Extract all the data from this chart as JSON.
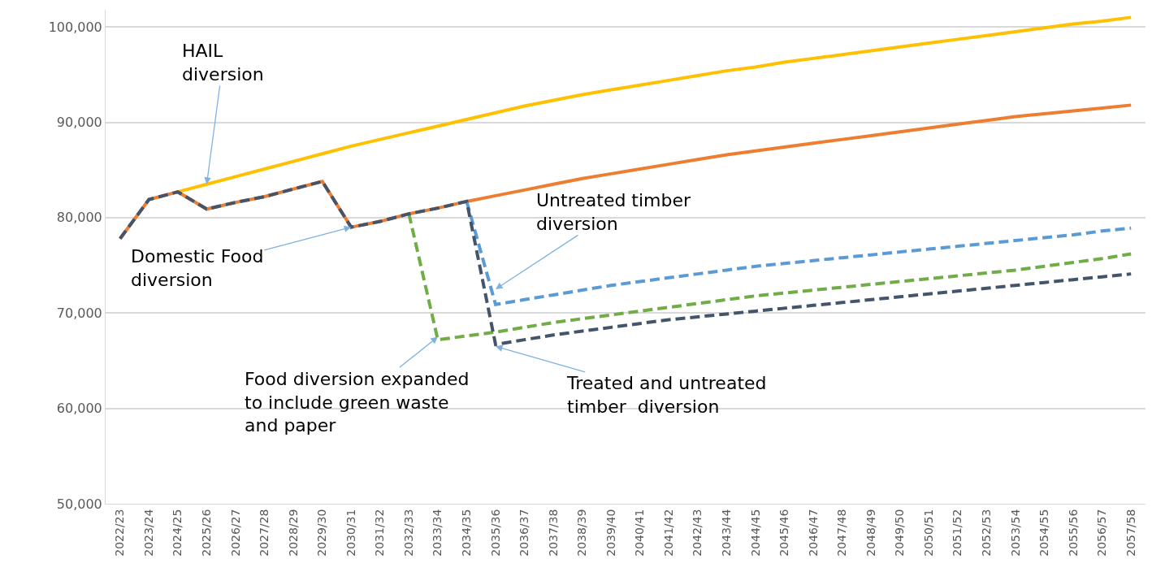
{
  "chart_data": {
    "type": "line",
    "categories": [
      "2022/23",
      "2023/24",
      "2024/25",
      "2025/26",
      "2026/27",
      "2027/28",
      "2028/29",
      "2029/30",
      "2030/31",
      "2031/32",
      "2032/33",
      "2033/34",
      "2034/35",
      "2035/36",
      "2036/37",
      "2037/38",
      "2038/39",
      "2039/40",
      "2040/41",
      "2041/42",
      "2042/43",
      "2043/44",
      "2044/45",
      "2045/46",
      "2046/47",
      "2047/48",
      "2048/49",
      "2049/50",
      "2050/51",
      "2051/52",
      "2052/53",
      "2053/54",
      "2054/55",
      "2055/56",
      "2056/57",
      "2057/58"
    ],
    "series": [
      {
        "color": "#ffc000",
        "line_style": "solid",
        "values": [
          null,
          null,
          82700,
          83500,
          84300,
          85100,
          85900,
          86700,
          87500,
          88200,
          88900,
          89600,
          90300,
          91000,
          91700,
          92300,
          92900,
          93400,
          93900,
          94400,
          94900,
          95400,
          95800,
          96300,
          96700,
          97100,
          97500,
          97900,
          98300,
          98700,
          99100,
          99500,
          99900,
          100300,
          100600,
          101000
        ]
      },
      {
        "color": "#ed7d31",
        "line_style": "solid",
        "values": [
          77800,
          81900,
          82700,
          80900,
          81600,
          82200,
          83000,
          83800,
          79000,
          79600,
          80400,
          81000,
          81700,
          82300,
          82900,
          83500,
          84100,
          84600,
          85100,
          85600,
          86100,
          86600,
          87000,
          87400,
          87800,
          88200,
          88600,
          89000,
          89400,
          89800,
          90200,
          90600,
          90900,
          91200,
          91500,
          91800
        ]
      },
      {
        "color": "#70ad47",
        "line_style": "dashed",
        "values": [
          null,
          null,
          null,
          null,
          null,
          null,
          null,
          null,
          null,
          null,
          80400,
          67200,
          67600,
          68000,
          68500,
          69000,
          69400,
          69800,
          70200,
          70600,
          71000,
          71400,
          71800,
          72100,
          72400,
          72700,
          73000,
          73300,
          73600,
          73900,
          74200,
          74500,
          74900,
          75300,
          75700,
          76200
        ]
      },
      {
        "color": "#5b9bd5",
        "line_style": "dashed",
        "values": [
          null,
          null,
          null,
          null,
          null,
          null,
          null,
          null,
          null,
          null,
          null,
          null,
          81700,
          70900,
          71400,
          71900,
          72400,
          72900,
          73300,
          73700,
          74100,
          74500,
          74900,
          75200,
          75500,
          75800,
          76100,
          76400,
          76700,
          77000,
          77300,
          77600,
          77900,
          78200,
          78600,
          78900
        ]
      },
      {
        "color": "#44546a",
        "line_style": "dashed",
        "values": [
          77800,
          81900,
          82700,
          80900,
          81600,
          82200,
          83000,
          83800,
          79000,
          79600,
          80400,
          81000,
          81700,
          66700,
          67200,
          67700,
          68100,
          68500,
          68900,
          69300,
          69600,
          69900,
          70200,
          70500,
          70800,
          71100,
          71400,
          71700,
          72000,
          72300,
          72600,
          72900,
          73200,
          73500,
          73800,
          74100
        ]
      }
    ],
    "ylim": [
      50000,
      101800
    ],
    "yticks": [
      {
        "value": 50000,
        "label": "50,000"
      },
      {
        "value": 60000,
        "label": "60,000"
      },
      {
        "value": 70000,
        "label": "70,000"
      },
      {
        "value": 80000,
        "label": "80,000"
      },
      {
        "value": 90000,
        "label": "90,000"
      },
      {
        "value": 100000,
        "label": "100,000"
      }
    ],
    "grid": "y",
    "marker": "none",
    "annotations": [
      {
        "text": "HAIL\ndiversion",
        "x": "2025/26",
        "y": 83500
      },
      {
        "text": "Domestic Food\ndiversion",
        "x": "2030/31",
        "y": 79000
      },
      {
        "text": "Untreated timber\ndiversion",
        "x": "2035/36",
        "y": 72500
      },
      {
        "text": "Food diversion expanded\nto include green waste\nand paper",
        "x": "2033/34",
        "y": 67500
      },
      {
        "text": "Treated and untreated\ntimber  diversion",
        "x": "2035/36",
        "y": 66500
      }
    ]
  }
}
